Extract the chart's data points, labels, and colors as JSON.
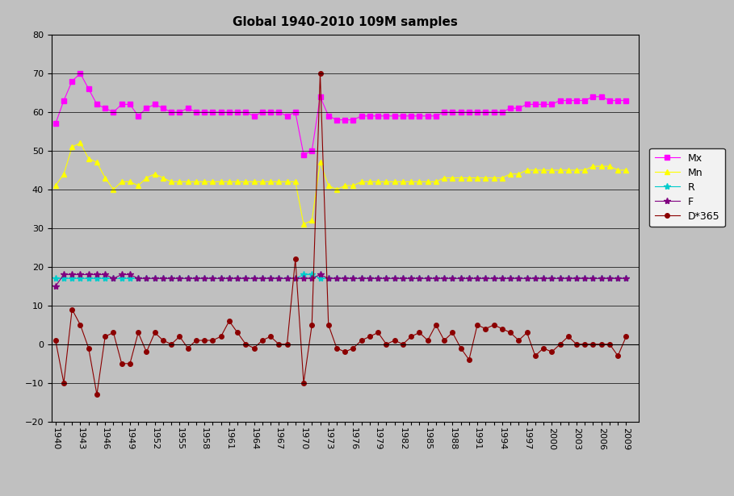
{
  "title": "Global 1940-2010 109M samples",
  "years": [
    1940,
    1941,
    1942,
    1943,
    1944,
    1945,
    1946,
    1947,
    1948,
    1949,
    1950,
    1951,
    1952,
    1953,
    1954,
    1955,
    1956,
    1957,
    1958,
    1959,
    1960,
    1961,
    1962,
    1963,
    1964,
    1965,
    1966,
    1967,
    1968,
    1969,
    1970,
    1971,
    1972,
    1973,
    1974,
    1975,
    1976,
    1977,
    1978,
    1979,
    1980,
    1981,
    1982,
    1983,
    1984,
    1985,
    1986,
    1987,
    1988,
    1989,
    1990,
    1991,
    1992,
    1993,
    1994,
    1995,
    1996,
    1997,
    1998,
    1999,
    2000,
    2001,
    2002,
    2003,
    2004,
    2005,
    2006,
    2007,
    2008,
    2009
  ],
  "Mx": [
    57,
    63,
    68,
    70,
    66,
    62,
    61,
    60,
    62,
    62,
    59,
    61,
    62,
    61,
    60,
    60,
    61,
    60,
    60,
    60,
    60,
    60,
    60,
    60,
    59,
    60,
    60,
    60,
    59,
    60,
    49,
    50,
    64,
    59,
    58,
    58,
    58,
    59,
    59,
    59,
    59,
    59,
    59,
    59,
    59,
    59,
    59,
    60,
    60,
    60,
    60,
    60,
    60,
    60,
    60,
    61,
    61,
    62,
    62,
    62,
    62,
    63,
    63,
    63,
    63,
    64,
    64,
    63,
    63,
    63
  ],
  "Mn": [
    41,
    44,
    51,
    52,
    48,
    47,
    43,
    40,
    42,
    42,
    41,
    43,
    44,
    43,
    42,
    42,
    42,
    42,
    42,
    42,
    42,
    42,
    42,
    42,
    42,
    42,
    42,
    42,
    42,
    42,
    31,
    32,
    47,
    41,
    40,
    41,
    41,
    42,
    42,
    42,
    42,
    42,
    42,
    42,
    42,
    42,
    42,
    43,
    43,
    43,
    43,
    43,
    43,
    43,
    43,
    44,
    44,
    45,
    45,
    45,
    45,
    45,
    45,
    45,
    45,
    46,
    46,
    46,
    45,
    45
  ],
  "R": [
    17,
    17,
    17,
    17,
    17,
    17,
    17,
    17,
    17,
    17,
    17,
    17,
    17,
    17,
    17,
    17,
    17,
    17,
    17,
    17,
    17,
    17,
    17,
    17,
    17,
    17,
    17,
    17,
    17,
    17,
    18,
    18,
    17,
    17,
    17,
    17,
    17,
    17,
    17,
    17,
    17,
    17,
    17,
    17,
    17,
    17,
    17,
    17,
    17,
    17,
    17,
    17,
    17,
    17,
    17,
    17,
    17,
    17,
    17,
    17,
    17,
    17,
    17,
    17,
    17,
    17,
    17,
    17,
    17,
    17
  ],
  "F": [
    15,
    18,
    18,
    18,
    18,
    18,
    18,
    17,
    18,
    18,
    17,
    17,
    17,
    17,
    17,
    17,
    17,
    17,
    17,
    17,
    17,
    17,
    17,
    17,
    17,
    17,
    17,
    17,
    17,
    17,
    17,
    17,
    18,
    17,
    17,
    17,
    17,
    17,
    17,
    17,
    17,
    17,
    17,
    17,
    17,
    17,
    17,
    17,
    17,
    17,
    17,
    17,
    17,
    17,
    17,
    17,
    17,
    17,
    17,
    17,
    17,
    17,
    17,
    17,
    17,
    17,
    17,
    17,
    17,
    17
  ],
  "D365": [
    1,
    -10,
    9,
    5,
    -1,
    -13,
    2,
    3,
    -5,
    -5,
    3,
    -2,
    3,
    1,
    0,
    2,
    -1,
    1,
    1,
    1,
    2,
    6,
    3,
    0,
    -1,
    1,
    2,
    0,
    0,
    22,
    -10,
    5,
    70,
    5,
    -1,
    -2,
    -1,
    1,
    2,
    3,
    0,
    1,
    0,
    2,
    3,
    1,
    5,
    1,
    3,
    -1,
    -4,
    5,
    4,
    5,
    4,
    3,
    1,
    3,
    -3,
    -1,
    -2,
    0,
    2,
    0,
    0,
    0,
    0,
    0,
    -3,
    2
  ],
  "colors": {
    "Mx": "#ff00ff",
    "Mn": "#ffff00",
    "R": "#00cccc",
    "F": "#800080",
    "D365": "#8b0000"
  },
  "ylim": [
    -20,
    80
  ],
  "yticks": [
    -20,
    -10,
    0,
    10,
    20,
    30,
    40,
    50,
    60,
    70,
    80
  ],
  "bg_color": "#c0c0c0",
  "title_fontsize": 11
}
